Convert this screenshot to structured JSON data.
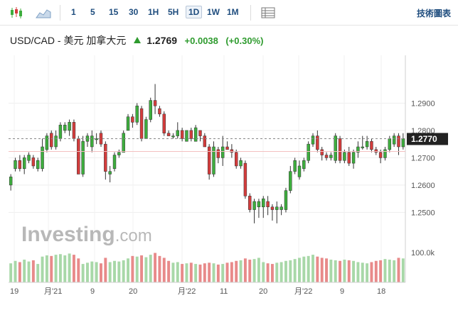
{
  "toolbar": {
    "icons": [
      "candlestick-icon",
      "area-chart-icon",
      "table-icon"
    ],
    "timeframes": [
      "1",
      "5",
      "15",
      "30",
      "1H",
      "5H",
      "1D",
      "1W",
      "1M"
    ],
    "active_timeframe": "1D",
    "tech_chart_label": "技術圖表"
  },
  "header": {
    "pair": "USD/CAD - 美元 加拿大元",
    "price": "1.2769",
    "change": "+0.0038",
    "change_pct": "(+0.30%)"
  },
  "watermark": {
    "brand": "Investing",
    "suffix": ".com"
  },
  "colors": {
    "up": "#3dad3d",
    "down": "#d43c3c",
    "vol_up": "#a8d8a8",
    "vol_down": "#e88a8a"
  },
  "chart_data": {
    "type": "candlestick",
    "y_ticks": [
      "1.2900",
      "1.2800",
      "1.2700",
      "1.2600",
      "1.2500"
    ],
    "y_tick_values": [
      1.29,
      1.28,
      1.27,
      1.26,
      1.25
    ],
    "ylim": [
      1.2405,
      1.3075
    ],
    "current_price_label": "1.2770",
    "current_price": 1.277,
    "volume_axis_label": "100.0k",
    "volume_ylim": [
      0,
      125
    ],
    "x_tick_labels": [
      "19",
      "月'21",
      "9",
      "20",
      "月'22",
      "11",
      "20",
      "月'22",
      "9",
      "18"
    ],
    "candles": [
      [
        1.26,
        1.263,
        1.258,
        1.264
      ],
      [
        1.266,
        1.269,
        1.265,
        1.27
      ],
      [
        1.269,
        1.266,
        1.265,
        1.271
      ],
      [
        1.266,
        1.27,
        1.264,
        1.271
      ],
      [
        1.269,
        1.271,
        1.268,
        1.272
      ],
      [
        1.27,
        1.267,
        1.266,
        1.271
      ],
      [
        1.266,
        1.269,
        1.265,
        1.27
      ],
      [
        1.266,
        1.274,
        1.265,
        1.277
      ],
      [
        1.273,
        1.278,
        1.272,
        1.279
      ],
      [
        1.279,
        1.274,
        1.273,
        1.28
      ],
      [
        1.274,
        1.278,
        1.273,
        1.28
      ],
      [
        1.277,
        1.282,
        1.276,
        1.283
      ],
      [
        1.28,
        1.282,
        1.279,
        1.283
      ],
      [
        1.28,
        1.283,
        1.278,
        1.284
      ],
      [
        1.283,
        1.277,
        1.276,
        1.284
      ],
      [
        1.277,
        1.264,
        1.264,
        1.278
      ],
      [
        1.264,
        1.276,
        1.263,
        1.278
      ],
      [
        1.276,
        1.278,
        1.274,
        1.279
      ],
      [
        1.274,
        1.278,
        1.272,
        1.28
      ],
      [
        1.277,
        1.277,
        1.275,
        1.279
      ],
      [
        1.279,
        1.275,
        1.274,
        1.28
      ],
      [
        1.275,
        1.265,
        1.262,
        1.276
      ],
      [
        1.264,
        1.265,
        1.261,
        1.267
      ],
      [
        1.266,
        1.271,
        1.265,
        1.272
      ],
      [
        1.271,
        1.272,
        1.27,
        1.273
      ],
      [
        1.272,
        1.279,
        1.272,
        1.28
      ],
      [
        1.28,
        1.285,
        1.28,
        1.286
      ],
      [
        1.285,
        1.283,
        1.281,
        1.286
      ],
      [
        1.283,
        1.289,
        1.282,
        1.29
      ],
      [
        1.288,
        1.277,
        1.276,
        1.289
      ],
      [
        1.277,
        1.284,
        1.277,
        1.285
      ],
      [
        1.284,
        1.291,
        1.283,
        1.292
      ],
      [
        1.291,
        1.289,
        1.286,
        1.297
      ],
      [
        1.288,
        1.286,
        1.285,
        1.289
      ],
      [
        1.286,
        1.279,
        1.278,
        1.287
      ],
      [
        1.279,
        1.278,
        1.278,
        1.28
      ],
      [
        1.278,
        1.278,
        1.277,
        1.279
      ],
      [
        1.278,
        1.28,
        1.277,
        1.283
      ],
      [
        1.28,
        1.277,
        1.276,
        1.281
      ],
      [
        1.276,
        1.28,
        1.276,
        1.28
      ],
      [
        1.28,
        1.277,
        1.276,
        1.281
      ],
      [
        1.276,
        1.281,
        1.276,
        1.282
      ],
      [
        1.28,
        1.278,
        1.276,
        1.28
      ],
      [
        1.278,
        1.274,
        1.274,
        1.279
      ],
      [
        1.274,
        1.264,
        1.262,
        1.275
      ],
      [
        1.264,
        1.274,
        1.263,
        1.276
      ],
      [
        1.273,
        1.27,
        1.268,
        1.274
      ],
      [
        1.27,
        1.274,
        1.267,
        1.278
      ],
      [
        1.274,
        1.273,
        1.273,
        1.276
      ],
      [
        1.273,
        1.272,
        1.27,
        1.275
      ],
      [
        1.272,
        1.267,
        1.266,
        1.273
      ],
      [
        1.267,
        1.269,
        1.266,
        1.27
      ],
      [
        1.268,
        1.256,
        1.255,
        1.269
      ],
      [
        1.256,
        1.251,
        1.25,
        1.257
      ],
      [
        1.251,
        1.254,
        1.246,
        1.255
      ],
      [
        1.252,
        1.254,
        1.248,
        1.255
      ],
      [
        1.252,
        1.255,
        1.248,
        1.256
      ],
      [
        1.254,
        1.252,
        1.249,
        1.256
      ],
      [
        1.252,
        1.251,
        1.247,
        1.253
      ],
      [
        1.251,
        1.252,
        1.246,
        1.254
      ],
      [
        1.251,
        1.252,
        1.249,
        1.253
      ],
      [
        1.251,
        1.258,
        1.25,
        1.259
      ],
      [
        1.258,
        1.265,
        1.257,
        1.267
      ],
      [
        1.265,
        1.269,
        1.264,
        1.27
      ],
      [
        1.263,
        1.267,
        1.262,
        1.269
      ],
      [
        1.266,
        1.269,
        1.265,
        1.27
      ],
      [
        1.269,
        1.275,
        1.268,
        1.276
      ],
      [
        1.275,
        1.278,
        1.274,
        1.279
      ],
      [
        1.278,
        1.273,
        1.272,
        1.28
      ],
      [
        1.273,
        1.271,
        1.269,
        1.274
      ],
      [
        1.271,
        1.27,
        1.269,
        1.272
      ],
      [
        1.27,
        1.271,
        1.269,
        1.272
      ],
      [
        1.269,
        1.278,
        1.268,
        1.279
      ],
      [
        1.277,
        1.269,
        1.268,
        1.278
      ],
      [
        1.269,
        1.272,
        1.268,
        1.273
      ],
      [
        1.272,
        1.268,
        1.267,
        1.274
      ],
      [
        1.268,
        1.272,
        1.266,
        1.273
      ],
      [
        1.272,
        1.274,
        1.27,
        1.276
      ],
      [
        1.274,
        1.274,
        1.273,
        1.278
      ],
      [
        1.274,
        1.276,
        1.273,
        1.278
      ],
      [
        1.276,
        1.273,
        1.272,
        1.277
      ],
      [
        1.273,
        1.272,
        1.271,
        1.274
      ],
      [
        1.272,
        1.27,
        1.268,
        1.273
      ],
      [
        1.27,
        1.273,
        1.269,
        1.274
      ],
      [
        1.273,
        1.277,
        1.272,
        1.278
      ],
      [
        1.275,
        1.278,
        1.274,
        1.279
      ],
      [
        1.278,
        1.274,
        1.271,
        1.279
      ],
      [
        1.274,
        1.277,
        1.273,
        1.279
      ]
    ],
    "volumes": [
      62,
      70,
      66,
      74,
      68,
      72,
      60,
      84,
      88,
      86,
      90,
      92,
      88,
      94,
      90,
      78,
      60,
      64,
      68,
      66,
      62,
      80,
      66,
      70,
      68,
      72,
      78,
      86,
      84,
      88,
      82,
      90,
      96,
      86,
      80,
      70,
      64,
      66,
      60,
      62,
      64,
      60,
      58,
      62,
      64,
      62,
      58,
      60,
      64,
      66,
      70,
      72,
      78,
      74,
      76,
      80,
      66,
      62,
      60,
      64,
      66,
      70,
      72,
      76,
      80,
      84,
      86,
      90,
      84,
      80,
      78,
      74,
      72,
      70,
      74,
      72,
      70,
      66,
      64,
      62,
      66,
      70,
      72,
      76,
      74,
      72,
      80,
      78
    ]
  }
}
